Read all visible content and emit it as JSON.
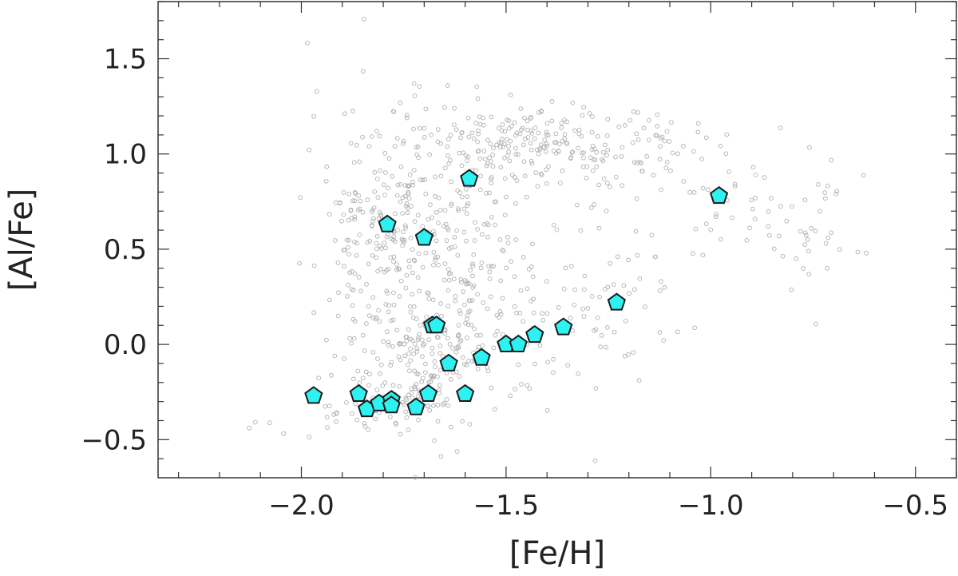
{
  "chart_data": {
    "type": "scatter",
    "title": "",
    "xlabel": "[Fe/H]",
    "ylabel": "[Al/Fe]",
    "xlim": [
      -2.35,
      -0.4
    ],
    "ylim": [
      -0.7,
      1.8
    ],
    "xticks": [
      -2.0,
      -1.5,
      -1.0,
      -0.5
    ],
    "xtick_labels": [
      "−2.0",
      "−1.5",
      "−1.0",
      "−0.5"
    ],
    "yticks": [
      -0.5,
      0.0,
      0.5,
      1.0,
      1.5
    ],
    "ytick_labels": [
      "−0.5",
      "0.0",
      "0.5",
      "1.0",
      "1.5"
    ],
    "grid": false,
    "legend": "none",
    "series": [
      {
        "marker": "small-open-circle",
        "color": "#b0b0b0",
        "clusters": [
          {
            "cx": -1.8,
            "cy": 0.65,
            "sx": 0.09,
            "sy": 0.32,
            "n": 220
          },
          {
            "cx": -1.7,
            "cy": -0.05,
            "sx": 0.1,
            "sy": 0.16,
            "n": 170
          },
          {
            "cx": -1.62,
            "cy": 0.55,
            "sx": 0.07,
            "sy": 0.35,
            "n": 120
          },
          {
            "cx": -1.45,
            "cy": 1.07,
            "sx": 0.13,
            "sy": 0.1,
            "n": 170
          },
          {
            "cx": -1.22,
            "cy": 1.0,
            "sx": 0.13,
            "sy": 0.14,
            "n": 80
          },
          {
            "cx": -1.5,
            "cy": 0.25,
            "sx": 0.14,
            "sy": 0.32,
            "n": 110
          },
          {
            "cx": -1.25,
            "cy": 0.2,
            "sx": 0.1,
            "sy": 0.18,
            "n": 45
          },
          {
            "cx": -0.9,
            "cy": 0.7,
            "sx": 0.11,
            "sy": 0.16,
            "n": 40
          },
          {
            "cx": -0.72,
            "cy": 0.55,
            "sx": 0.06,
            "sy": 0.16,
            "n": 25
          },
          {
            "cx": -1.82,
            "cy": -0.33,
            "sx": 0.1,
            "sy": 0.07,
            "n": 60
          }
        ],
        "seed": 7
      },
      {
        "marker": "pentagon",
        "color": "#2ef2f2",
        "edgecolor": "#1a1a1a",
        "points": [
          {
            "x": -1.97,
            "y": -0.27
          },
          {
            "x": -1.86,
            "y": -0.26
          },
          {
            "x": -1.84,
            "y": -0.34
          },
          {
            "x": -1.81,
            "y": -0.31
          },
          {
            "x": -1.79,
            "y": 0.63
          },
          {
            "x": -1.78,
            "y": -0.29
          },
          {
            "x": -1.78,
            "y": -0.32
          },
          {
            "x": -1.72,
            "y": -0.33
          },
          {
            "x": -1.7,
            "y": 0.56
          },
          {
            "x": -1.69,
            "y": -0.26
          },
          {
            "x": -1.68,
            "y": 0.1
          },
          {
            "x": -1.67,
            "y": 0.1
          },
          {
            "x": -1.64,
            "y": -0.1
          },
          {
            "x": -1.6,
            "y": -0.26
          },
          {
            "x": -1.59,
            "y": 0.87
          },
          {
            "x": -1.56,
            "y": -0.07
          },
          {
            "x": -1.5,
            "y": 0.0
          },
          {
            "x": -1.47,
            "y": 0.0
          },
          {
            "x": -1.43,
            "y": 0.05
          },
          {
            "x": -1.36,
            "y": 0.09
          },
          {
            "x": -1.23,
            "y": 0.22
          },
          {
            "x": -0.98,
            "y": 0.78
          }
        ]
      }
    ]
  }
}
